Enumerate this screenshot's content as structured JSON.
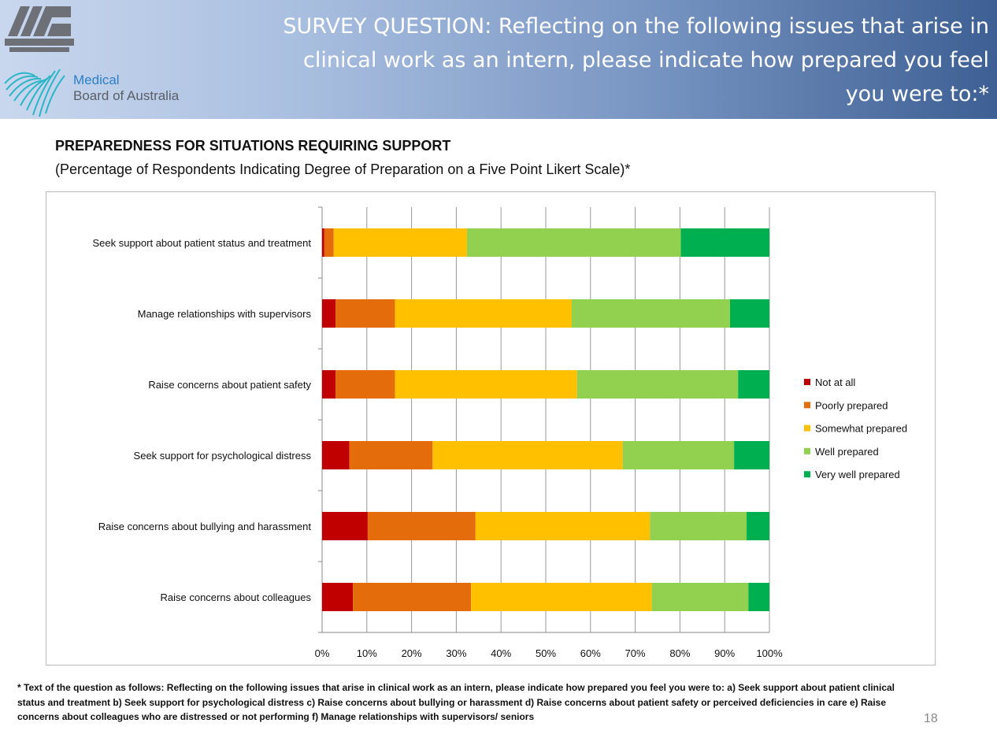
{
  "header": {
    "title": "SURVEY QUESTION: Reflecting on the following issues that arise in clinical work as an intern, please indicate how prepared you feel you were to:*",
    "logo_amc": "AUSTRALIAN MEDICAL COUNCIL LIMITED",
    "logo_mba_line1": "Medical",
    "logo_mba_line2": "Board of Australia"
  },
  "chart_data": {
    "type": "bar",
    "orientation": "horizontal",
    "stacked": "100%",
    "title": "PREPAREDNESS FOR SITUATIONS REQUIRING SUPPORT",
    "subtitle": "(Percentage of Respondents Indicating Degree of Preparation on a Five Point Likert Scale)*",
    "categories": [
      "Seek support about patient status and treatment",
      "Manage relationships with supervisors",
      "Raise concerns about patient safety",
      "Seek support for psychological distress",
      "Raise concerns about bullying and harassment",
      "Raise concerns about colleagues"
    ],
    "series": [
      {
        "name": "Not at all",
        "color": "#c00000",
        "values": [
          0.5,
          3.0,
          3.0,
          6.1,
          10.2,
          6.9
        ]
      },
      {
        "name": "Poorly prepared",
        "color": "#e46c0a",
        "values": [
          2.1,
          13.3,
          13.3,
          18.6,
          24.1,
          26.4
        ]
      },
      {
        "name": "Somewhat prepared",
        "color": "#ffc000",
        "values": [
          29.8,
          39.5,
          40.7,
          42.5,
          39.0,
          40.4
        ]
      },
      {
        "name": "Well prepared",
        "color": "#92d050",
        "values": [
          47.8,
          35.4,
          36.0,
          24.9,
          21.6,
          21.6
        ]
      },
      {
        "name": "Very well prepared",
        "color": "#00b050",
        "values": [
          19.8,
          8.8,
          7.0,
          7.9,
          5.1,
          4.7
        ]
      }
    ],
    "xlim": [
      0,
      100
    ],
    "xticks": [
      "0%",
      "10%",
      "20%",
      "30%",
      "40%",
      "50%",
      "60%",
      "70%",
      "80%",
      "90%",
      "100%"
    ],
    "grid": true,
    "legend": "right"
  },
  "footnote": "* Text of the question as follows: Reflecting on the following issues that arise in clinical work as an intern, please indicate how prepared you feel you were to: a) Seek support about patient clinical status and treatment b) Seek support for psychological distress c) Raise concerns about bullying or harassment d) Raise concerns about patient safety or perceived deficiencies in care e) Raise concerns about colleagues who are distressed or not performing f) Manage relationships with supervisors/ seniors",
  "page_number": "18"
}
